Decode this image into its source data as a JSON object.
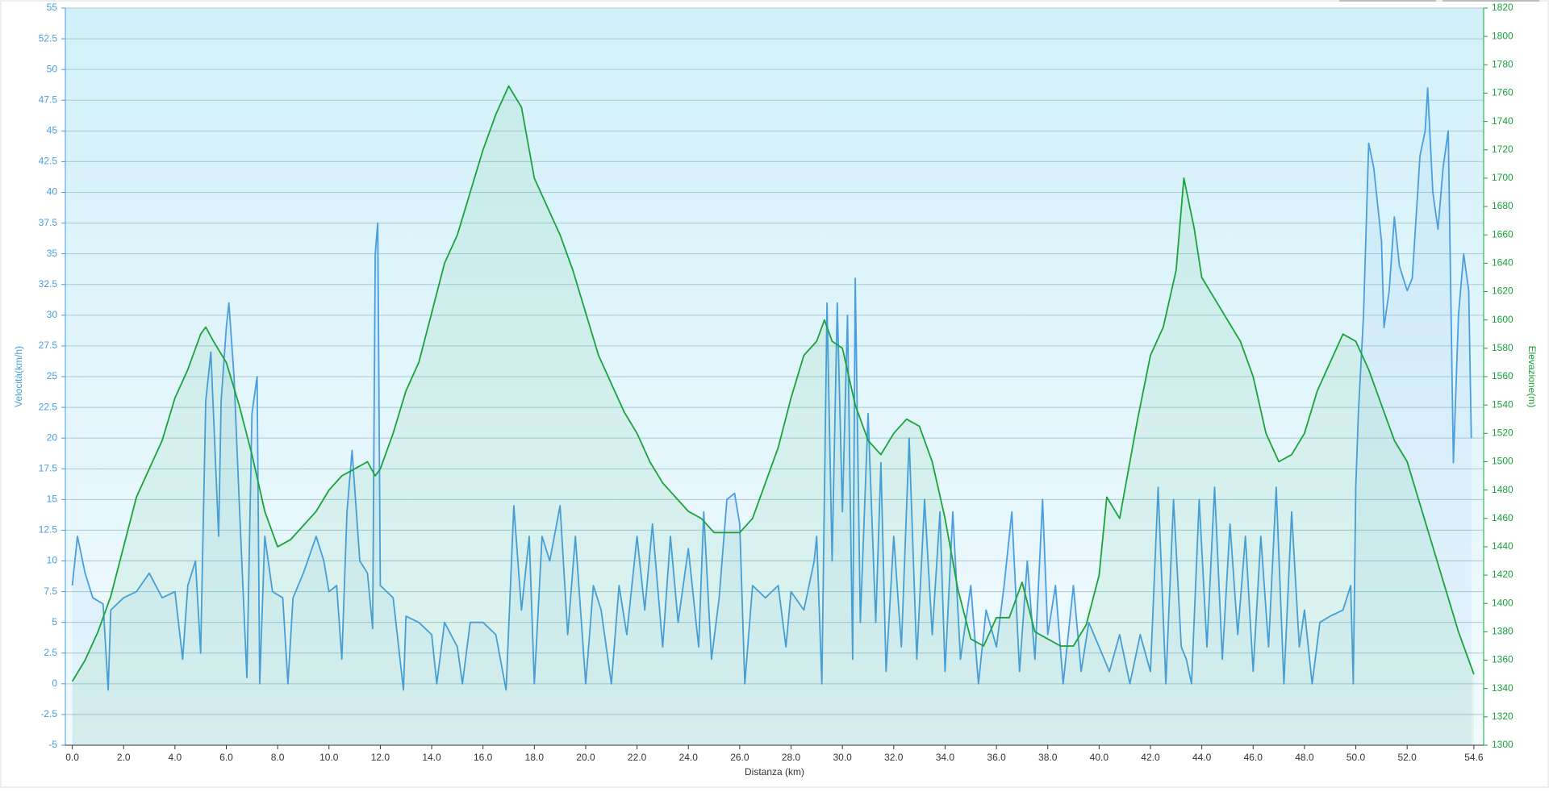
{
  "chart_data": {
    "type": "line",
    "xlabel": "Distanza  (km)",
    "ylabel": "Velocità(km/h)",
    "y2label": "Elevazione(m)",
    "xlim": [
      -0.27,
      54.98
    ],
    "xticks": [
      {
        "value": 0,
        "label": "0.0"
      },
      {
        "value": 2,
        "label": "2.0"
      },
      {
        "value": 4,
        "label": "4.0"
      },
      {
        "value": 6,
        "label": "6.0"
      },
      {
        "value": 8,
        "label": "8.0"
      },
      {
        "value": 10,
        "label": "10.0"
      },
      {
        "value": 12,
        "label": "12.0"
      },
      {
        "value": 14,
        "label": "14.0"
      },
      {
        "value": 16,
        "label": "16.0"
      },
      {
        "value": 18,
        "label": "18.0"
      },
      {
        "value": 20,
        "label": "20.0"
      },
      {
        "value": 22,
        "label": "22.0"
      },
      {
        "value": 24,
        "label": "24.0"
      },
      {
        "value": 26,
        "label": "26.0"
      },
      {
        "value": 28,
        "label": "28.0"
      },
      {
        "value": 30,
        "label": "30.0"
      },
      {
        "value": 32,
        "label": "32.0"
      },
      {
        "value": 34,
        "label": "34.0"
      },
      {
        "value": 36,
        "label": "36.0"
      },
      {
        "value": 38,
        "label": "38.0"
      },
      {
        "value": 40,
        "label": "40.0"
      },
      {
        "value": 42,
        "label": "42.0"
      },
      {
        "value": 44,
        "label": "44.0"
      },
      {
        "value": 46,
        "label": "46.0"
      },
      {
        "value": 48,
        "label": "48.0"
      },
      {
        "value": 50,
        "label": "50.0"
      },
      {
        "value": 52,
        "label": "52.0"
      },
      54.6
    ],
    "ylim": [
      -5,
      55
    ],
    "yticks": [
      -5,
      -2.5,
      0,
      2.5,
      5,
      7.5,
      10,
      12.5,
      15,
      17.5,
      20,
      22.5,
      25,
      27.5,
      30,
      32.5,
      35,
      37.5,
      40,
      42.5,
      45,
      47.5,
      50,
      52.5,
      55
    ],
    "y2lim": [
      1300,
      1820
    ],
    "y2ticks": [
      1300,
      1320,
      1340,
      1360,
      1380,
      1400,
      1420,
      1440,
      1460,
      1480,
      1500,
      1520,
      1540,
      1560,
      1580,
      1600,
      1620,
      1640,
      1660,
      1680,
      1700,
      1720,
      1740,
      1760,
      1780,
      1800,
      1820
    ],
    "grid": true,
    "series": [
      {
        "color": "#4a9ee0",
        "axis": "y",
        "x": [
          0,
          0.2,
          0.5,
          0.8,
          1.2,
          1.4,
          1.5,
          2,
          2.5,
          3,
          3.5,
          4,
          4.3,
          4.5,
          4.8,
          5,
          5.2,
          5.4,
          5.7,
          5.8,
          6,
          6.1,
          6.3,
          6.5,
          6.8,
          7,
          7.2,
          7.3,
          7.5,
          7.8,
          8.2,
          8.4,
          8.6,
          9,
          9.5,
          9.8,
          10,
          10.3,
          10.5,
          10.7,
          10.9,
          11.2,
          11.5,
          11.7,
          11.8,
          11.9,
          12,
          12.5,
          12.9,
          13,
          13.5,
          14,
          14.2,
          14.5,
          15,
          15.2,
          15.5,
          16,
          16.5,
          16.9,
          17.2,
          17.5,
          17.8,
          18,
          18.3,
          18.6,
          19,
          19.3,
          19.6,
          20,
          20.3,
          20.6,
          21,
          21.3,
          21.6,
          22,
          22.3,
          22.6,
          23,
          23.3,
          23.6,
          24,
          24.4,
          24.6,
          24.9,
          25.2,
          25.5,
          25.8,
          26,
          26.2,
          26.5,
          27,
          27.5,
          27.8,
          28,
          28.5,
          28.9,
          29,
          29.2,
          29.4,
          29.6,
          29.8,
          30,
          30.2,
          30.4,
          30.5,
          30.7,
          31,
          31.3,
          31.5,
          31.7,
          32,
          32.3,
          32.6,
          32.9,
          33.2,
          33.5,
          33.8,
          34,
          34.3,
          34.6,
          35,
          35.3,
          35.6,
          36,
          36.3,
          36.6,
          36.9,
          37.2,
          37.5,
          37.8,
          38,
          38.3,
          38.6,
          39,
          39.3,
          39.6,
          40,
          40.4,
          40.8,
          41.2,
          41.6,
          42,
          42.3,
          42.6,
          42.9,
          43.2,
          43.4,
          43.6,
          43.9,
          44.2,
          44.5,
          44.8,
          45.1,
          45.4,
          45.7,
          46,
          46.3,
          46.6,
          46.9,
          47.2,
          47.5,
          47.8,
          48,
          48.3,
          48.6,
          49,
          49.5,
          49.8,
          49.9,
          50,
          50.1,
          50.3,
          50.5,
          50.7,
          51,
          51.1,
          51.3,
          51.5,
          51.7,
          52,
          52.2,
          52.5,
          52.7,
          52.8,
          53,
          53.2,
          53.4,
          53.6,
          53.8,
          54,
          54.2,
          54.4,
          54.5
        ],
        "values": [
          8,
          12,
          9,
          7,
          6.5,
          -0.5,
          6,
          7,
          7.5,
          9,
          7,
          7.5,
          2,
          8,
          10,
          2.5,
          23,
          27,
          12,
          23,
          29,
          31,
          25,
          15,
          0.5,
          22,
          25,
          0,
          12,
          7.5,
          7,
          0,
          7,
          9,
          12,
          10,
          7.5,
          8,
          2,
          14,
          19,
          10,
          9,
          4.5,
          35,
          37.5,
          8,
          7,
          -0.5,
          5.5,
          5,
          4,
          0,
          5,
          3,
          0,
          5,
          5,
          4,
          -0.5,
          14.5,
          6,
          12,
          0,
          12,
          10,
          14.5,
          4,
          12,
          0,
          8,
          6,
          0,
          8,
          4,
          12,
          6,
          13,
          3,
          12,
          5,
          11,
          3,
          14,
          2,
          7,
          15,
          15.5,
          13,
          0,
          8,
          7,
          8,
          3,
          7.5,
          6,
          10,
          12,
          0,
          31,
          10,
          31,
          14,
          30,
          2,
          33,
          5,
          22,
          5,
          18,
          1,
          12,
          3,
          20,
          2,
          15,
          4,
          14,
          1,
          14,
          2,
          8,
          0,
          6,
          3,
          8,
          14,
          1,
          10,
          2,
          15,
          4,
          8,
          0,
          8,
          1,
          5,
          3,
          1,
          4,
          0,
          4,
          1,
          16,
          0,
          15,
          3,
          2,
          0,
          15,
          3,
          16,
          2,
          13,
          4,
          12,
          1,
          12,
          3,
          16,
          0,
          14,
          3,
          6,
          0,
          5,
          5.5,
          6,
          8,
          0,
          16,
          22,
          30,
          44,
          42,
          36,
          29,
          32,
          38,
          34,
          32,
          33,
          43,
          45,
          48.5,
          40,
          37,
          42,
          45,
          18,
          30,
          35,
          32,
          20
        ]
      },
      {
        "color": "#1aa33a",
        "axis": "y2",
        "x": [
          0,
          0.5,
          1,
          1.5,
          2,
          2.5,
          3,
          3.5,
          4,
          4.5,
          5,
          5.2,
          5.5,
          6,
          6.5,
          7,
          7.5,
          8,
          8.5,
          9,
          9.5,
          10,
          10.5,
          11,
          11.5,
          11.8,
          12,
          12.5,
          13,
          13.5,
          14,
          14.5,
          15,
          15.5,
          16,
          16.5,
          17,
          17.5,
          18,
          18.5,
          19,
          19.5,
          20,
          20.5,
          21,
          21.5,
          22,
          22.5,
          23,
          23.5,
          24,
          24.5,
          25,
          25.5,
          26,
          26.5,
          27,
          27.5,
          28,
          28.5,
          29,
          29.3,
          29.6,
          30,
          30.5,
          31,
          31.5,
          32,
          32.5,
          33,
          33.5,
          34,
          34.5,
          35,
          35.5,
          36,
          36.5,
          37,
          37.5,
          38,
          38.5,
          39,
          39.5,
          40,
          40.3,
          40.8,
          41.5,
          42,
          42.5,
          43,
          43.3,
          43.7,
          44,
          44.5,
          45,
          45.5,
          46,
          46.5,
          47,
          47.5,
          48,
          48.5,
          49,
          49.5,
          50,
          50.5,
          51,
          51.5,
          52,
          52.5,
          53,
          53.5,
          54,
          54.3,
          54.6
        ],
        "values": [
          1345,
          1360,
          1380,
          1405,
          1440,
          1475,
          1495,
          1515,
          1545,
          1565,
          1590,
          1595,
          1585,
          1570,
          1540,
          1505,
          1465,
          1440,
          1445,
          1455,
          1465,
          1480,
          1490,
          1495,
          1500,
          1490,
          1495,
          1520,
          1550,
          1570,
          1605,
          1640,
          1660,
          1690,
          1720,
          1745,
          1765,
          1750,
          1700,
          1680,
          1660,
          1635,
          1605,
          1575,
          1555,
          1535,
          1520,
          1500,
          1485,
          1475,
          1465,
          1460,
          1450,
          1450,
          1450,
          1460,
          1485,
          1510,
          1545,
          1575,
          1585,
          1600,
          1585,
          1580,
          1540,
          1515,
          1505,
          1520,
          1530,
          1525,
          1500,
          1460,
          1410,
          1375,
          1370,
          1390,
          1390,
          1415,
          1380,
          1375,
          1370,
          1370,
          1385,
          1420,
          1475,
          1460,
          1530,
          1575,
          1595,
          1635,
          1700,
          1665,
          1630,
          1615,
          1600,
          1585,
          1560,
          1520,
          1500,
          1505,
          1520,
          1550,
          1570,
          1590,
          1585,
          1565,
          1540,
          1515,
          1500,
          1470,
          1440,
          1410,
          1380,
          1365,
          1350
        ]
      }
    ]
  }
}
